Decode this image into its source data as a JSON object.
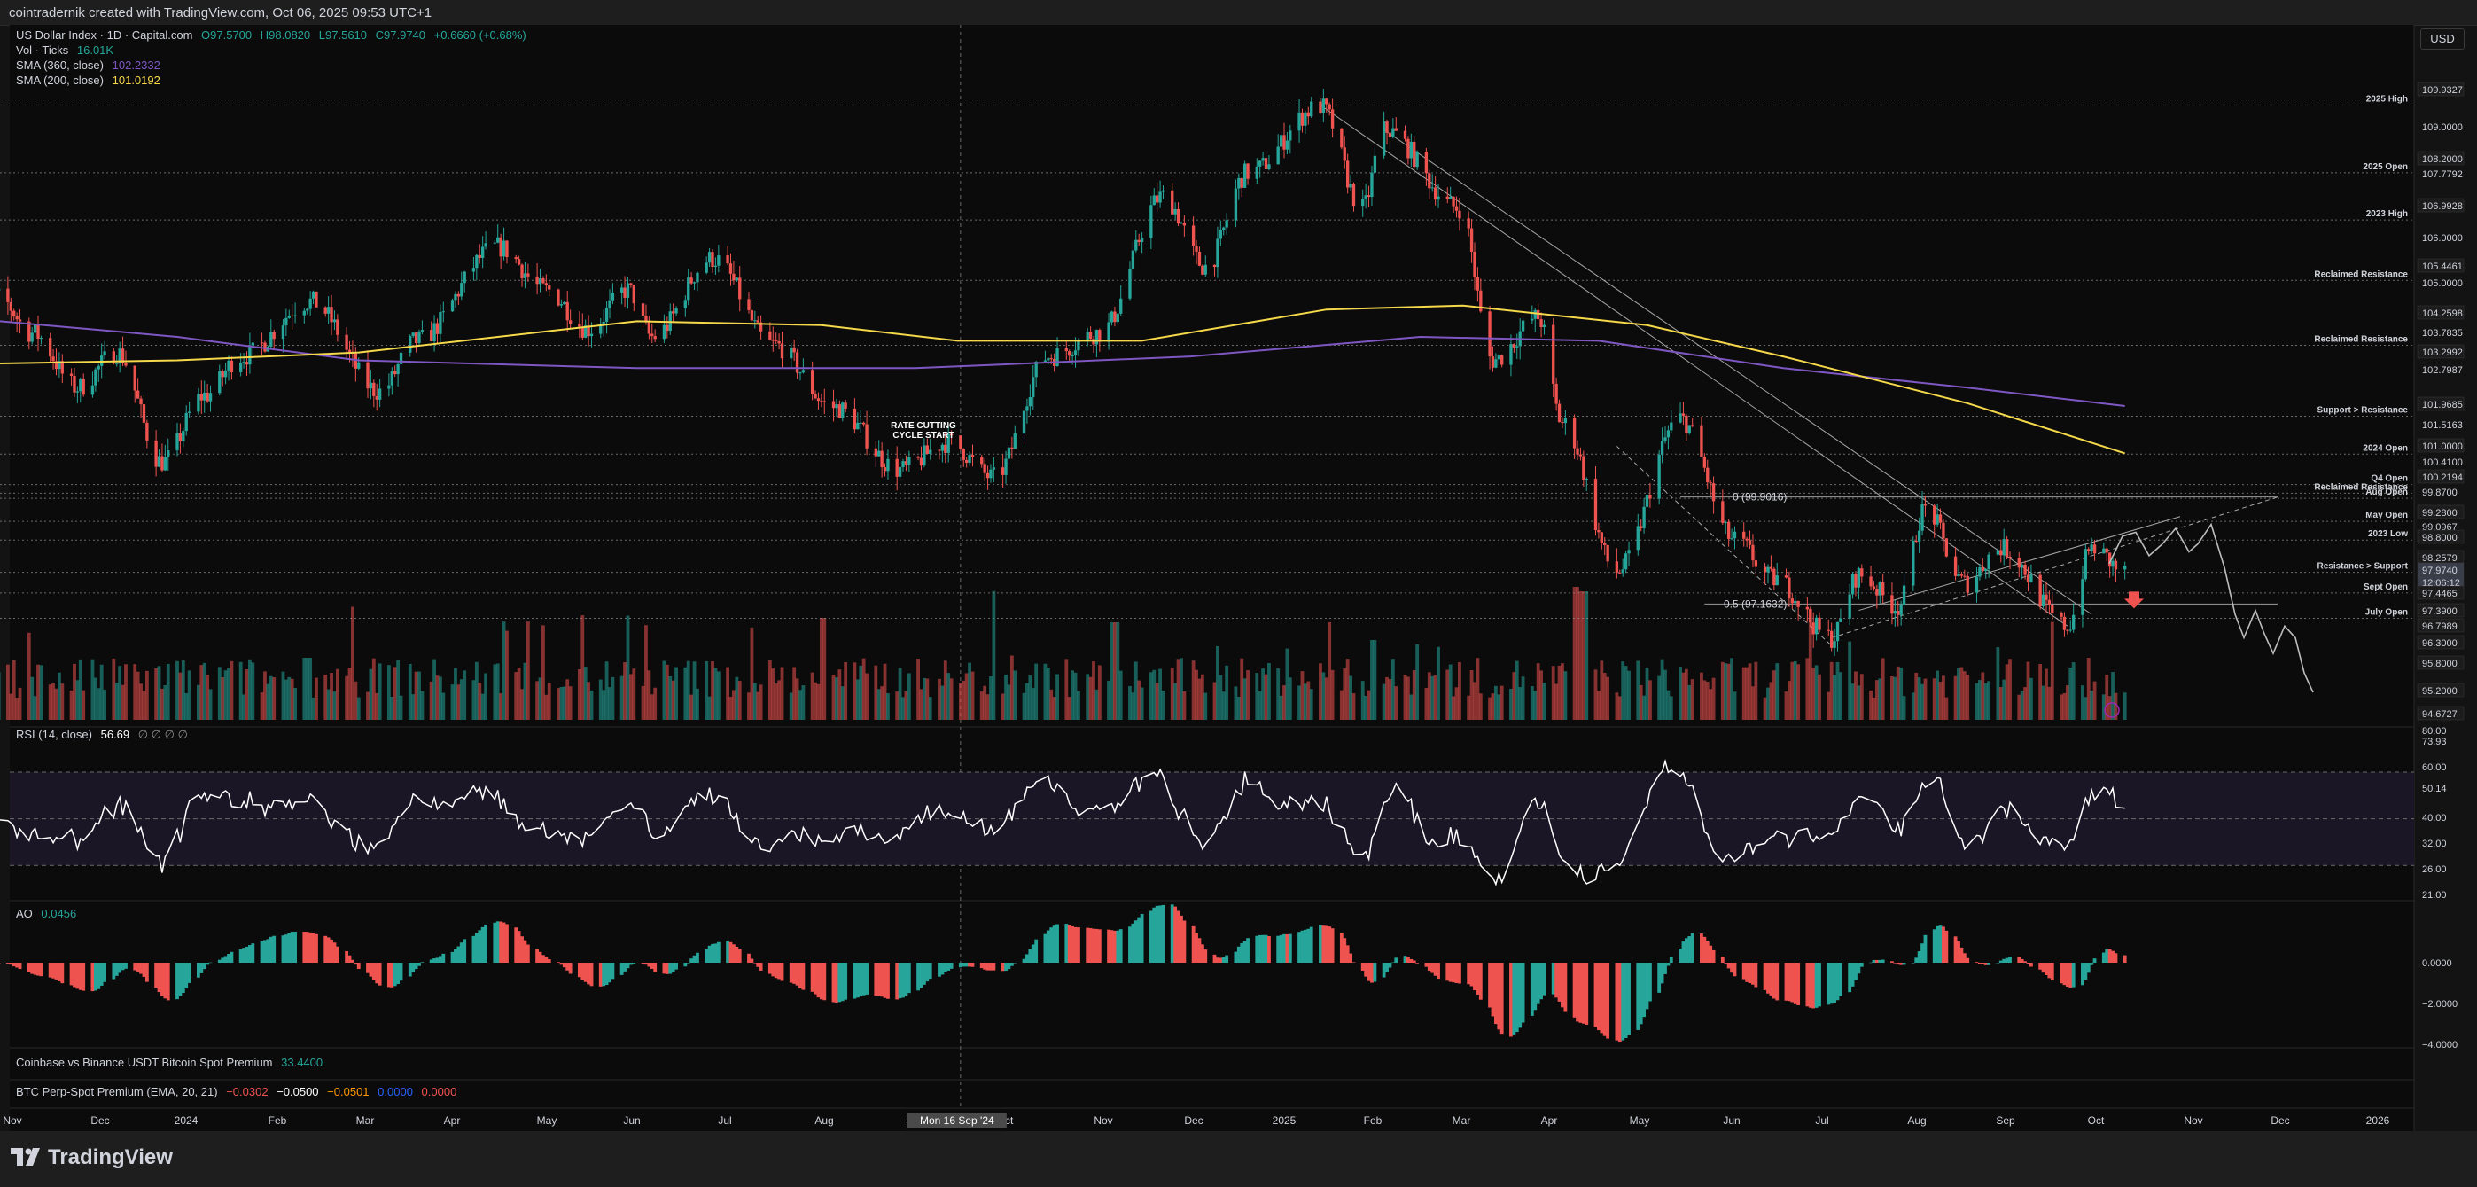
{
  "header": {
    "caption": "cointradernik created with TradingView.com, Oct 06, 2025 09:53 UTC+1"
  },
  "currency_button": "USD",
  "branding": "TradingView",
  "legends": {
    "main": {
      "name": "US Dollar Index · 1D · Capital.com",
      "open": "O97.5700",
      "high": "H98.0820",
      "low": "L97.5610",
      "close": "C97.9740",
      "change": "+0.6660 (+0.68%)"
    },
    "volume": {
      "name": "Vol · Ticks",
      "value": "16.01K"
    },
    "sma360": {
      "name": "SMA (360, close)",
      "value": "102.2332"
    },
    "sma200": {
      "name": "SMA (200, close)",
      "value": "101.0192"
    },
    "rsi": {
      "name": "RSI (14, close)",
      "value": "56.69",
      "extra": "∅ ∅ ∅ ∅"
    },
    "ao": {
      "name": "AO",
      "value": "0.0456"
    },
    "premium": {
      "name": "Coinbase vs Binance USDT Bitcoin Spot Premium",
      "value": "33.4400"
    },
    "btc": {
      "name": "BTC Perp-Spot Premium (EMA, 20, 21)",
      "v1": "−0.0302",
      "v2": "−0.0500",
      "v3": "−0.0501",
      "v4": "0.0000",
      "v5": "0.0000"
    }
  },
  "colors": {
    "up": "#26a69a",
    "down": "#ef5350",
    "sma360": "#7e57c2",
    "sma200": "#f5d94a",
    "rsi_bg": "#1a1626",
    "ao_up": "#26a69a",
    "ao_down": "#ef5350",
    "arrow": "#ef5350"
  },
  "chart_data": {
    "type": "candlestick",
    "symbol": "US Dollar Index",
    "timeframe": "1D",
    "x_axis_ticks": [
      "Nov",
      "Dec",
      "2024",
      "Feb",
      "Mar",
      "Apr",
      "May",
      "Jun",
      "Jul",
      "Aug",
      "Sep",
      "Oct",
      "Nov",
      "Dec",
      "2025",
      "Feb",
      "Mar",
      "Apr",
      "May",
      "Jun",
      "Jul",
      "Aug",
      "Sep",
      "Oct",
      "Nov",
      "Dec",
      "2026"
    ],
    "crosshair_date": "Mon 16 Sep '24",
    "price_axis_labels": [
      "109.9327",
      "109.0000",
      "108.2000",
      "107.7792",
      "106.9928",
      "106.0000",
      "105.4461",
      "105.0000",
      "104.2598",
      "103.7835",
      "103.2992",
      "102.7987",
      "101.9685",
      "101.5163",
      "101.0000",
      "100.4100",
      "100.2194",
      "99.8700",
      "99.2800",
      "99.0967",
      "98.8000",
      "98.2579",
      "97.9740",
      "12:06:12",
      "97.4465",
      "97.3900",
      "96.7989",
      "96.3000",
      "95.8000",
      "95.2000",
      "94.6727"
    ],
    "levels": [
      {
        "label": "2025 High",
        "price": 109.9327
      },
      {
        "label": "2025 Open",
        "price": 108.2
      },
      {
        "label": "2023 High",
        "price": 106.9928
      },
      {
        "label": "Reclaimed Resistance",
        "price": 105.4461
      },
      {
        "label": "Reclaimed Resistance",
        "price": 103.7835
      },
      {
        "label": "Support > Resistance",
        "price": 101.9685
      },
      {
        "label": "2024 Open",
        "price": 101.0
      },
      {
        "label": "Q4 Open",
        "price": 100.2194
      },
      {
        "label": "Reclaimed Resistance",
        "price": 100.0
      },
      {
        "label": "Aug Open",
        "price": 99.87
      },
      {
        "label": "May Open",
        "price": 99.28
      },
      {
        "label": "2023 Low",
        "price": 98.8
      },
      {
        "label": "Resistance > Support",
        "price": 97.974
      },
      {
        "label": "Sept Open",
        "price": 97.4465
      },
      {
        "label": "July Open",
        "price": 96.7989
      }
    ],
    "fib_labels": [
      "0 (99.9016)",
      "0.5 (97.1632)"
    ],
    "annotation": "RATE CUTTING CYCLE START",
    "rsi": {
      "axis_labels": [
        "80.00",
        "73.93",
        "60.00",
        "50.14",
        "40.00",
        "32.00",
        "26.00",
        "21.00"
      ],
      "upper_band": 70,
      "lower_band": 30
    },
    "ao": {
      "axis_labels": [
        "0.0000",
        "−2.0000",
        "−4.0000"
      ]
    }
  }
}
